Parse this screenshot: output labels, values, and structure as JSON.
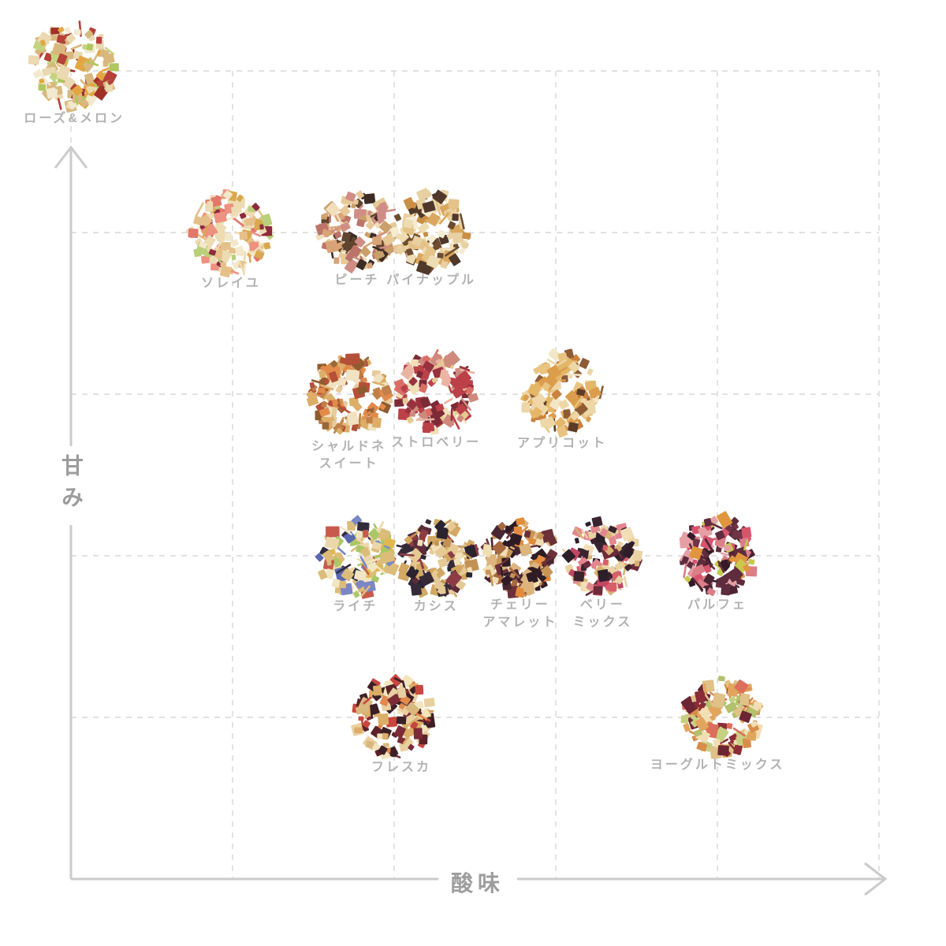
{
  "colors": {
    "background": "#ffffff",
    "grid_dashed": "#d7d7d7",
    "axis_line": "#cbcbcb",
    "item_label_text": "#b2b2b2",
    "axis_label_text": "#9c9c9c"
  },
  "chart_data": {
    "type": "scatter",
    "xlabel": "酸味",
    "ylabel": "甘み",
    "x_range": [
      0,
      5
    ],
    "y_range": [
      0,
      5
    ],
    "grid": "dashed, 1 unit spacing, no tick labels",
    "legend": "none",
    "plot": {
      "x0": 90,
      "y0": 1115,
      "step": 205,
      "units": 5
    },
    "points": [
      {
        "label": "ローズ&メロン",
        "label_lines": [
          "ローズ&メロン"
        ],
        "sourness": 0.02,
        "sweetness": 5.03,
        "radius": 54,
        "palette": [
          "#ead9b1",
          "#d9b87e",
          "#b5413a",
          "#a03028",
          "#aec75e",
          "#c3d47f",
          "#e2a742",
          "#f2e9cf"
        ]
      },
      {
        "label": "ソレイユ",
        "label_lines": [
          "ソレイユ"
        ],
        "sourness": 0.99,
        "sweetness": 4.0,
        "radius": 52,
        "palette": [
          "#eddbb2",
          "#e5c089",
          "#ee9180",
          "#e2776a",
          "#b9cf79",
          "#d9a84e",
          "#8e2b3e",
          "#f3e8ca"
        ]
      },
      {
        "label": "ピーチ",
        "label_lines": [
          "ピーチ"
        ],
        "sourness": 1.77,
        "sweetness": 4.01,
        "radius": 50,
        "palette": [
          "#e6c997",
          "#d8a477",
          "#cf8d85",
          "#bd7468",
          "#f0dfba",
          "#5f4430",
          "#caa06a",
          "#3c2c24"
        ]
      },
      {
        "label": "パイナップル",
        "label_lines": [
          "パイナップル"
        ],
        "sourness": 2.23,
        "sweetness": 4.01,
        "radius": 50,
        "palette": [
          "#eedcb2",
          "#e5c388",
          "#d9a75d",
          "#f5ecd2",
          "#c98f46",
          "#e8d0a2",
          "#50382a",
          "#6d4c30"
        ]
      },
      {
        "label": "シャルドネスイート",
        "label_lines": [
          "シャルドネ",
          "スイート"
        ],
        "sourness": 1.72,
        "sweetness": 2.99,
        "radius": 52,
        "palette": [
          "#dcae68",
          "#c08048",
          "#e6cb9c",
          "#8d5c2e",
          "#e28a4a",
          "#f1e2c2",
          "#b45038",
          "#96683a"
        ]
      },
      {
        "label": "ストロベリー",
        "label_lines": [
          "ストロベリー"
        ],
        "sourness": 2.26,
        "sweetness": 3.01,
        "radius": 51,
        "palette": [
          "#da6e66",
          "#bc4048",
          "#eab4a2",
          "#f1dfb8",
          "#7c2a36",
          "#e5ca90",
          "#cf8a7e",
          "#98323e"
        ]
      },
      {
        "label": "アプリコット",
        "label_lines": [
          "アプリコット"
        ],
        "sourness": 3.04,
        "sweetness": 3.01,
        "radius": 52,
        "palette": [
          "#eed6a6",
          "#e4b768",
          "#db9d4c",
          "#f3e6c6",
          "#8d5c36",
          "#cb823e",
          "#5c3c26",
          "#e8c480"
        ]
      },
      {
        "label": "ライチ",
        "label_lines": [
          "ライチ"
        ],
        "sourness": 1.76,
        "sweetness": 1.99,
        "radius": 50,
        "palette": [
          "#ebd8aa",
          "#dcbc7a",
          "#5a68b2",
          "#aac768",
          "#302c3c",
          "#c75a4c",
          "#7a86c6",
          "#f1e5c2",
          "#e0b84e"
        ]
      },
      {
        "label": "カシス",
        "label_lines": [
          "カシス"
        ],
        "sourness": 2.26,
        "sweetness": 1.99,
        "radius": 50,
        "palette": [
          "#e6ca96",
          "#d2a862",
          "#352a38",
          "#2a2330",
          "#8c3c44",
          "#5c2c3a",
          "#f1e1ba",
          "#c29254"
        ]
      },
      {
        "label": "チェリーアマレット",
        "label_lines": [
          "チェリー",
          "アマレット"
        ],
        "sourness": 2.78,
        "sweetness": 1.99,
        "radius": 48,
        "palette": [
          "#dcb47c",
          "#c89454",
          "#482532",
          "#6c3138",
          "#e28c3c",
          "#2e1b24",
          "#f1ddb2",
          "#a86840"
        ]
      },
      {
        "label": "ベリーミックス",
        "label_lines": [
          "ベリー",
          "ミックス"
        ],
        "sourness": 3.29,
        "sweetness": 1.99,
        "radius": 48,
        "palette": [
          "#e9d2a4",
          "#d8b274",
          "#e28690",
          "#d85e6c",
          "#382430",
          "#6c2a3a",
          "#f1deb6",
          "#c24862",
          "#2c1f2a"
        ]
      },
      {
        "label": "パルフェ",
        "label_lines": [
          "パルフェ"
        ],
        "sourness": 4.0,
        "sweetness": 2.0,
        "radius": 50,
        "palette": [
          "#4c2432",
          "#5e2c3c",
          "#331a26",
          "#703446",
          "#db7e88",
          "#e5a0a6",
          "#c9c94e",
          "#e0963c",
          "#d7556c"
        ]
      },
      {
        "label": "フレスカ",
        "label_lines": [
          "フレスカ"
        ],
        "sourness": 2.0,
        "sweetness": 1.0,
        "radius": 51,
        "label_dx": 9,
        "palette": [
          "#e9d0a0",
          "#dcae68",
          "#7c2c36",
          "#c8463e",
          "#f2e4bc",
          "#5c2228",
          "#e2894c",
          "#3c2026",
          "#d9b87e"
        ]
      },
      {
        "label": "ヨーグルトミックス",
        "label_lines": [
          "ヨーグルトミックス"
        ],
        "sourness": 4.03,
        "sweetness": 1.01,
        "radius": 50,
        "label_dx": -6,
        "palette": [
          "#e2a55e",
          "#d88d4a",
          "#b2c16c",
          "#dc6e5c",
          "#8c2c36",
          "#f1deb2",
          "#c6d180",
          "#6c2532",
          "#e0c188"
        ]
      }
    ]
  }
}
